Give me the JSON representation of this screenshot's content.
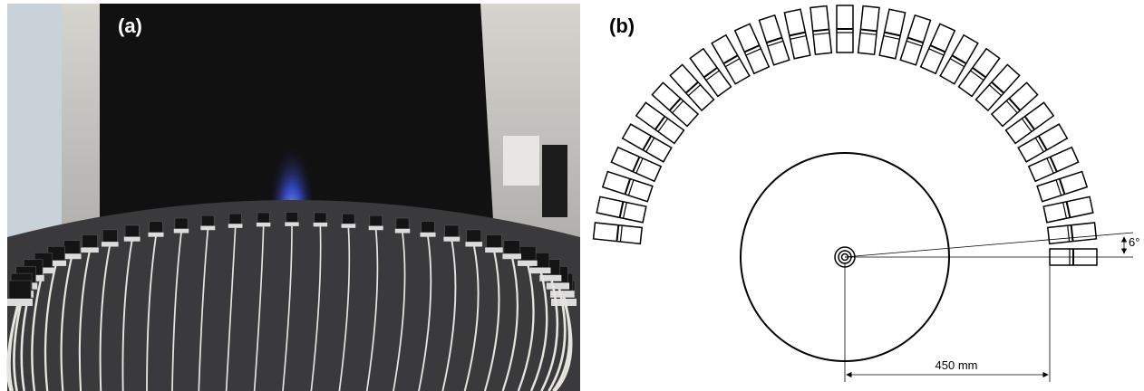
{
  "panel_a": {
    "label": "(a)"
  },
  "panel_b": {
    "label": "(b)",
    "angle_label": "6°",
    "distance_label": "450 mm"
  }
}
